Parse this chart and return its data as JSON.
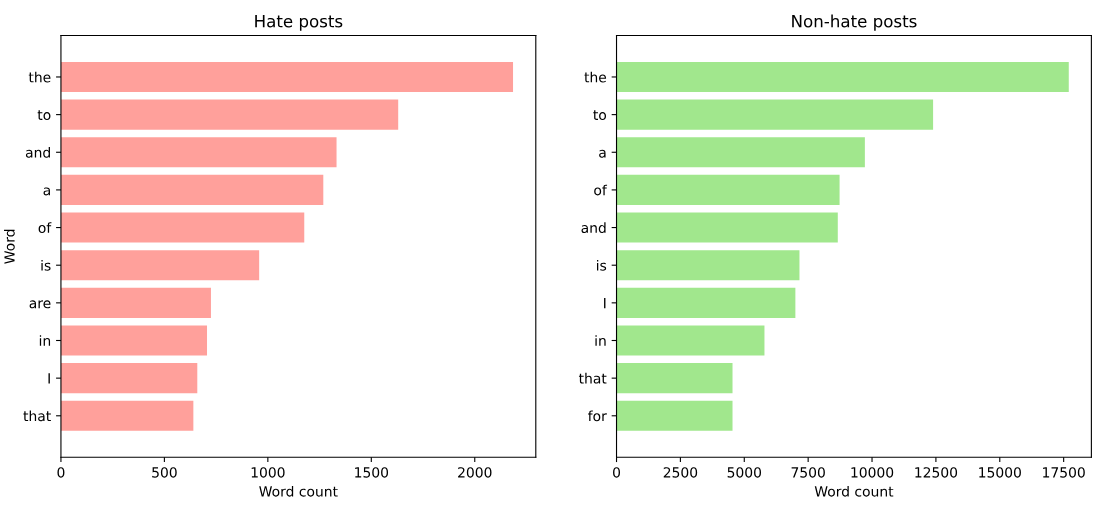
{
  "chart_data": [
    {
      "type": "bar",
      "orientation": "horizontal",
      "title": "Hate posts",
      "xlabel": "Word count",
      "ylabel": "Word",
      "categories": [
        "the",
        "to",
        "and",
        "a",
        "of",
        "is",
        "are",
        "in",
        "I",
        "that"
      ],
      "values": [
        2185,
        1630,
        1332,
        1268,
        1176,
        958,
        725,
        706,
        659,
        640
      ],
      "color": "#ffa09b",
      "xlim": [
        0,
        2295
      ],
      "xticks": [
        0,
        500,
        1000,
        1500,
        2000
      ],
      "grid": false
    },
    {
      "type": "bar",
      "orientation": "horizontal",
      "title": "Non-hate posts",
      "xlabel": "Word count",
      "categories": [
        "the",
        "to",
        "a",
        "of",
        "and",
        "is",
        "I",
        "in",
        "that",
        "for"
      ],
      "values": [
        17700,
        12390,
        9720,
        8730,
        8660,
        7160,
        7000,
        5790,
        4540,
        4540
      ],
      "color": "#a1e78d",
      "xlim": [
        0,
        18585
      ],
      "xticks": [
        0,
        2500,
        5000,
        7500,
        10000,
        12500,
        15000,
        17500
      ],
      "grid": false
    }
  ]
}
